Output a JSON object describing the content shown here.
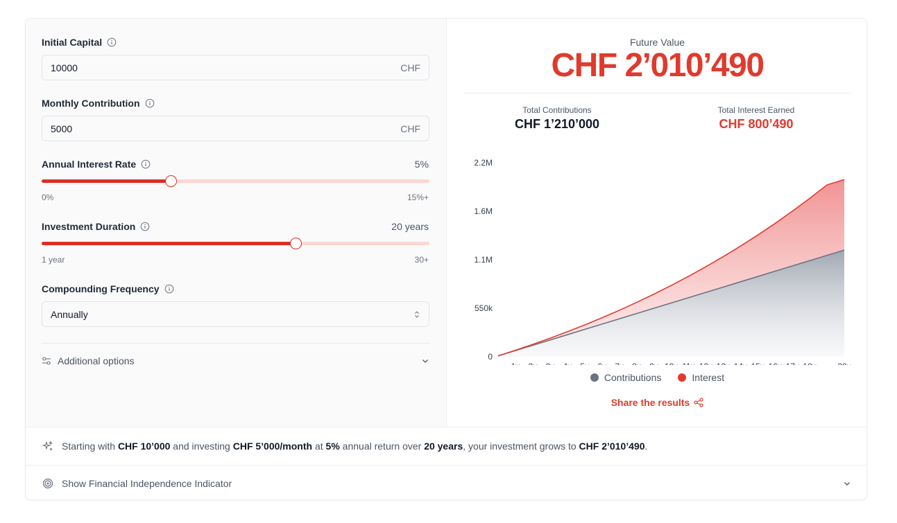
{
  "inputs": {
    "initial_capital": {
      "label": "Initial Capital",
      "value": "10000",
      "suffix": "CHF"
    },
    "monthly_contribution": {
      "label": "Monthly Contribution",
      "value": "5000",
      "suffix": "CHF"
    },
    "interest_rate": {
      "label": "Annual Interest Rate",
      "display": "5%",
      "min_label": "0%",
      "max_label": "15%+",
      "fraction": 0.333
    },
    "duration": {
      "label": "Investment Duration",
      "display": "20 years",
      "min_label": "1 year",
      "max_label": "30+",
      "fraction": 0.655
    },
    "compounding": {
      "label": "Compounding Frequency",
      "selected": "Annually"
    },
    "additional_options_label": "Additional options"
  },
  "results": {
    "future_value_label": "Future Value",
    "future_value": "CHF 2’010’490",
    "total_contributions_label": "Total Contributions",
    "total_contributions": "CHF 1’210’000",
    "total_interest_label": "Total Interest Earned",
    "total_interest": "CHF 800’490"
  },
  "legend": {
    "contributions": "Contributions",
    "interest": "Interest"
  },
  "share_label": "Share the results",
  "summary": {
    "t1": "Starting with ",
    "b1": "CHF 10’000",
    "t2": " and investing ",
    "b2": "CHF 5’000/month",
    "t3": " at ",
    "b3": "5%",
    "t4": " annual return over ",
    "b4": "20 years",
    "t5": ", your investment grows to ",
    "b5": "CHF 2’010’490",
    "t6": "."
  },
  "fi_label": "Show Financial Independence Indicator",
  "colors": {
    "accent": "#dc2f24",
    "accent_light": "#fcd7d4",
    "contrib": "#6b7280"
  },
  "chart_data": {
    "type": "area",
    "x": [
      0,
      1,
      2,
      3,
      4,
      5,
      6,
      7,
      8,
      9,
      10,
      11,
      12,
      13,
      14,
      15,
      16,
      17,
      18,
      19,
      20
    ],
    "tick_labels": [
      "1y",
      "2y",
      "3y",
      "4y",
      "5y",
      "6y",
      "7y",
      "8y",
      "9y",
      "10y",
      "11y",
      "12y",
      "13y",
      "14y",
      "15y",
      "16y",
      "17y",
      "18y",
      "20y"
    ],
    "tick_x": [
      1,
      2,
      3,
      4,
      5,
      6,
      7,
      8,
      9,
      10,
      11,
      12,
      13,
      14,
      15,
      16,
      17,
      18,
      20
    ],
    "y_ticks": [
      {
        "value": 0,
        "label": "0"
      },
      {
        "value": 550000,
        "label": "550k"
      },
      {
        "value": 1100000,
        "label": "1.1M"
      },
      {
        "value": 1650000,
        "label": "1.6M"
      },
      {
        "value": 2200000,
        "label": "2.2M"
      }
    ],
    "ylim": [
      0,
      2200000
    ],
    "series": [
      {
        "name": "Contributions",
        "values": [
          10000,
          70000,
          130000,
          190000,
          250000,
          310000,
          370000,
          430000,
          490000,
          550000,
          610000,
          670000,
          730000,
          790000,
          850000,
          910000,
          970000,
          1030000,
          1090000,
          1150000,
          1210000
        ]
      },
      {
        "name": "Interest",
        "values": [
          10000,
          73500,
          140175,
          210184,
          283693,
          360878,
          441922,
          527018,
          616369,
          710187,
          808697,
          912131,
          1020738,
          1134775,
          1254514,
          1380239,
          1512251,
          1650864,
          1796407,
          1949227,
          2010490
        ]
      }
    ]
  }
}
